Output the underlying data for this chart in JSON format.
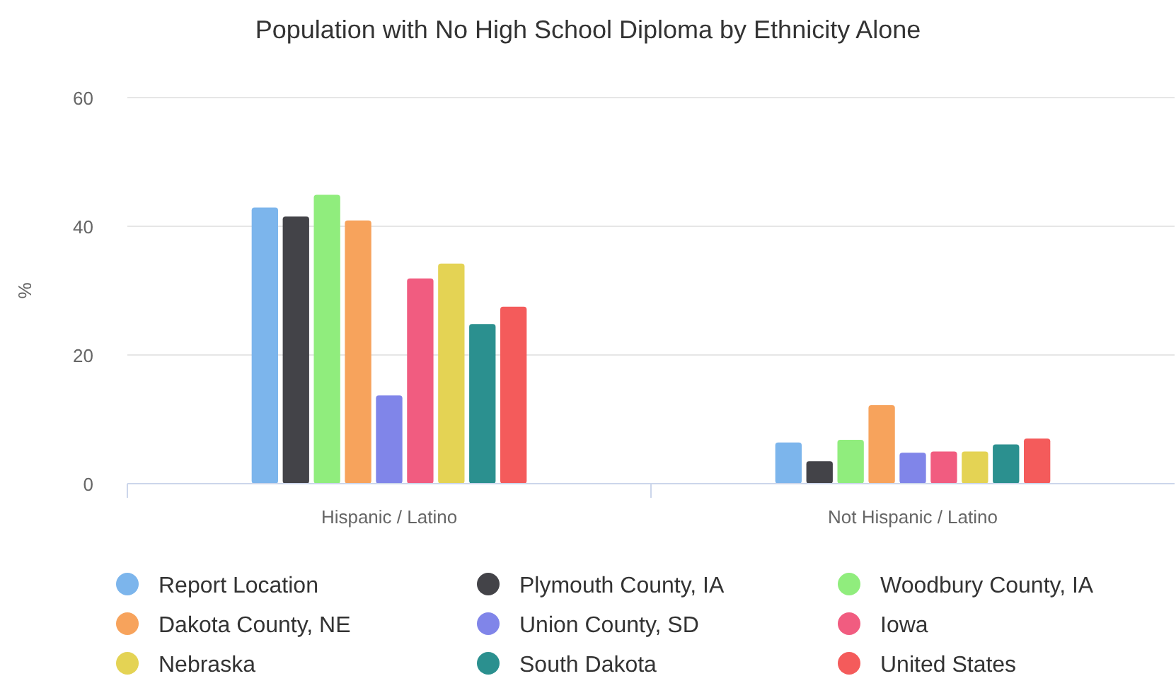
{
  "chart_data": {
    "type": "bar",
    "title": "Population with No High School Diploma by Ethnicity Alone",
    "ylabel": "%",
    "categories": [
      "Hispanic / Latino",
      "Not Hispanic / Latino"
    ],
    "series": [
      {
        "name": "Report Location",
        "color": "#7cb5ec",
        "values": [
          42.9,
          6.4
        ]
      },
      {
        "name": "Plymouth County, IA",
        "color": "#434348",
        "values": [
          41.5,
          3.5
        ]
      },
      {
        "name": "Woodbury County, IA",
        "color": "#90ed7d",
        "values": [
          44.9,
          6.8
        ]
      },
      {
        "name": "Dakota County, NE",
        "color": "#f7a35c",
        "values": [
          40.9,
          12.2
        ]
      },
      {
        "name": "Union County, SD",
        "color": "#8085e9",
        "values": [
          13.7,
          4.8
        ]
      },
      {
        "name": "Iowa",
        "color": "#f15c80",
        "values": [
          31.9,
          5.0
        ]
      },
      {
        "name": "Nebraska",
        "color": "#e4d354",
        "values": [
          34.2,
          5.0
        ]
      },
      {
        "name": "South Dakota",
        "color": "#2b908f",
        "values": [
          24.8,
          6.1
        ]
      },
      {
        "name": "United States",
        "color": "#f45b5b",
        "values": [
          27.5,
          7.0
        ]
      }
    ],
    "ylim": [
      0,
      60
    ],
    "yticks": [
      0,
      20,
      40,
      60
    ],
    "grid": "y",
    "legend": "bottom"
  }
}
